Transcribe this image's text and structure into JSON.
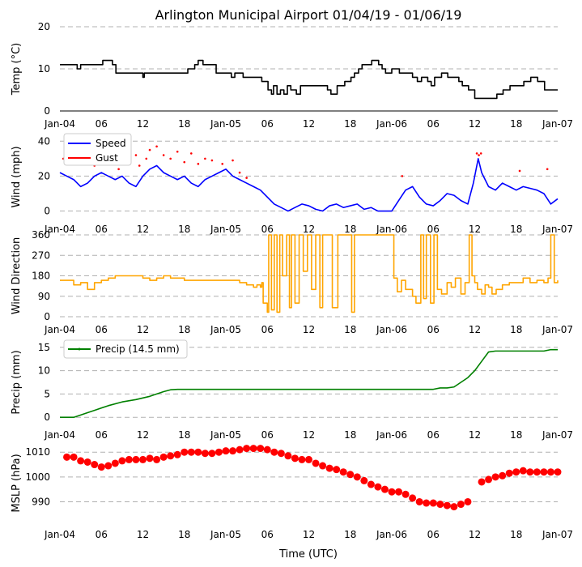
{
  "chart_data": {
    "title": "Arlington Municipal Airport 01/04/19 - 01/06/19",
    "xlabel": "Time (UTC)",
    "x_unit": "hours since Jan-04 00:00 UTC",
    "xlim": [
      0,
      72
    ],
    "x_ticks": [
      {
        "x": 0,
        "label": "Jan-04"
      },
      {
        "x": 6,
        "label": "06"
      },
      {
        "x": 12,
        "label": "12"
      },
      {
        "x": 18,
        "label": "18"
      },
      {
        "x": 24,
        "label": "Jan-05"
      },
      {
        "x": 30,
        "label": "06"
      },
      {
        "x": 36,
        "label": "12"
      },
      {
        "x": 42,
        "label": "18"
      },
      {
        "x": 48,
        "label": "Jan-06"
      },
      {
        "x": 54,
        "label": "06"
      },
      {
        "x": 60,
        "label": "12"
      },
      {
        "x": 66,
        "label": "18"
      },
      {
        "x": 72,
        "label": "Jan-07"
      }
    ],
    "panels": [
      {
        "name": "temp",
        "type": "line",
        "ylabel": "Temp ($^\\circ$C)",
        "ylabel_display": "Temp (°C)",
        "ylim": [
          0,
          20
        ],
        "yticks": [
          0,
          10,
          20
        ],
        "bottom_axis_line": true,
        "series": [
          {
            "name": "Temp",
            "color": "#000000",
            "step": true,
            "x": [
              0,
              2.5,
              3.0,
              5.2,
              6.2,
              7.6,
              8.1,
              12,
              12.2,
              14,
              16,
              18.5,
              19.5,
              20,
              20.7,
              22.6,
              24.8,
              25.3,
              26.5,
              29.2,
              30.1,
              30.6,
              30.9,
              31.4,
              31.9,
              32.4,
              32.9,
              33.4,
              34.2,
              34.8,
              38.7,
              39.2,
              39.7,
              40.1,
              41.2,
              42.1,
              42.6,
              43.2,
              43.7,
              44.2,
              45.1,
              46.1,
              46.6,
              47.1,
              48,
              48.6,
              49.1,
              51,
              51.7,
              52.3,
              53.2,
              53.7,
              54.2,
              55.2,
              56.1,
              57.2,
              57.7,
              58.2,
              59.1,
              60,
              61,
              62.5,
              63.2,
              64.1,
              65.1,
              66.1,
              67.1,
              68.1,
              69.1,
              70.1,
              72
            ],
            "values": [
              11,
              10,
              11,
              11,
              12,
              11,
              9,
              8,
              9,
              9,
              9,
              10,
              11,
              12,
              11,
              9,
              8,
              9,
              8,
              7,
              5,
              4,
              6,
              4,
              5,
              4,
              6,
              5,
              4,
              6,
              5,
              4,
              4,
              6,
              7,
              8,
              9,
              10,
              11,
              11,
              12,
              11,
              10,
              9,
              10,
              10,
              9,
              8,
              7,
              8,
              7,
              6,
              8,
              9,
              8,
              8,
              7,
              6,
              5,
              3,
              3,
              3,
              4,
              5,
              6,
              6,
              7,
              8,
              7,
              5,
              5
            ]
          }
        ]
      },
      {
        "name": "wind",
        "type": "line",
        "ylabel": "Wind (mph)",
        "ylim": [
          -3,
          42
        ],
        "yticks": [
          0,
          20,
          40
        ],
        "legend": "top-left",
        "series": [
          {
            "name": "Speed",
            "color": "#0000ff",
            "x": [
              0,
              1,
              2,
              3,
              4,
              5,
              6,
              7,
              8,
              9,
              10,
              11,
              12,
              13,
              14,
              15,
              16,
              17,
              18,
              19,
              20,
              21,
              22,
              23,
              24,
              25,
              26,
              27,
              28,
              29,
              30,
              31,
              32,
              33,
              34,
              35,
              36,
              37,
              38,
              39,
              40,
              41,
              42,
              43,
              44,
              45,
              46,
              47,
              48,
              49,
              50,
              51,
              52,
              53,
              54,
              55,
              56,
              57,
              58,
              59,
              59.8,
              60.5,
              61,
              62,
              63,
              64,
              65,
              66,
              67,
              68,
              69,
              70,
              71,
              72
            ],
            "values": [
              22,
              20,
              18,
              14,
              16,
              20,
              22,
              20,
              18,
              20,
              16,
              14,
              20,
              24,
              26,
              22,
              20,
              18,
              20,
              16,
              14,
              18,
              20,
              22,
              24,
              20,
              18,
              16,
              14,
              12,
              8,
              4,
              2,
              0,
              2,
              4,
              3,
              1,
              0,
              3,
              4,
              2,
              3,
              4,
              1,
              2,
              0,
              0,
              0,
              6,
              12,
              14,
              8,
              4,
              3,
              6,
              10,
              9,
              6,
              4,
              16,
              30,
              22,
              14,
              12,
              16,
              14,
              12,
              14,
              13,
              12,
              10,
              4,
              7
            ]
          },
          {
            "name": "Gust",
            "color": "#ff0000",
            "marker": "dots",
            "x": [
              0.5,
              3,
              5,
              8.5,
              9,
              11,
              11.5,
              12.5,
              13,
              14,
              15,
              16,
              17,
              18,
              19,
              20,
              21,
              22,
              23.5,
              25,
              26,
              27,
              49.5,
              60.3,
              60.6,
              60.9,
              66.5,
              70.5
            ],
            "values": [
              30,
              28,
              26,
              24,
              30,
              32,
              26,
              30,
              35,
              37,
              32,
              30,
              34,
              28,
              33,
              27,
              30,
              29,
              27,
              29,
              22,
              19,
              20,
              33,
              32,
              33,
              23,
              24
            ]
          }
        ]
      },
      {
        "name": "direction",
        "type": "line",
        "ylabel": "Wind Direction",
        "ylim": [
          0,
          360
        ],
        "yticks": [
          0,
          90,
          180,
          270,
          360
        ],
        "series": [
          {
            "name": "Direction",
            "color": "#ffa500",
            "step": true,
            "x": [
              0,
              2,
              3,
              4,
              5,
              6,
              7,
              8,
              10,
              12,
              13,
              14,
              15,
              16,
              18,
              20,
              21,
              24,
              26,
              27,
              28,
              28.5,
              29,
              29.2,
              29.4,
              30,
              30.2,
              30.6,
              31,
              31.4,
              31.8,
              32.2,
              32.8,
              33.2,
              33.5,
              34,
              34.6,
              35.2,
              35.8,
              36.4,
              37,
              37.6,
              38,
              38.4,
              38.8,
              39.4,
              40.2,
              41,
              41.6,
              42.2,
              42.6,
              43,
              46,
              48,
              48.3,
              48.8,
              49.4,
              50,
              51,
              51.5,
              52.2,
              52.6,
              53,
              53.6,
              54.1,
              54.6,
              55.2,
              56,
              56.6,
              57.2,
              58,
              58.6,
              59.2,
              59.6,
              60,
              60.4,
              61,
              61.5,
              62,
              62.5,
              63.1,
              64,
              65,
              66,
              67,
              68,
              69,
              70,
              70.6,
              71,
              71.5,
              72
            ],
            "values": [
              160,
              140,
              150,
              120,
              150,
              160,
              170,
              180,
              180,
              170,
              160,
              170,
              180,
              170,
              160,
              160,
              160,
              160,
              150,
              140,
              130,
              140,
              130,
              150,
              60,
              20,
              360,
              30,
              360,
              20,
              360,
              180,
              360,
              40,
              360,
              60,
              360,
              200,
              360,
              120,
              360,
              40,
              360,
              360,
              360,
              40,
              360,
              360,
              360,
              20,
              360,
              360,
              360,
              360,
              170,
              110,
              160,
              120,
              90,
              60,
              360,
              80,
              360,
              60,
              360,
              120,
              100,
              150,
              130,
              170,
              100,
              150,
              360,
              180,
              150,
              120,
              100,
              140,
              130,
              100,
              120,
              140,
              150,
              150,
              170,
              150,
              160,
              150,
              170,
              360,
              150,
              160
            ]
          }
        ]
      },
      {
        "name": "precip",
        "type": "line",
        "ylabel": "Precip (mm)",
        "ylim": [
          -1,
          16
        ],
        "yticks": [
          0,
          5,
          10,
          15
        ],
        "legend": "top-left",
        "series": [
          {
            "name": "Precip (14.5 mm)",
            "color": "#008000",
            "x": [
              0,
              2,
              3,
              5,
              7,
              9,
              11,
              13,
              14,
              15,
              16,
              17,
              18,
              21,
              24,
              30,
              36,
              42,
              48,
              54,
              55,
              56,
              57,
              58,
              59,
              60,
              61,
              62,
              63,
              64,
              66,
              68,
              70,
              71,
              72
            ],
            "values": [
              0,
              0,
              0.5,
              1.5,
              2.5,
              3.3,
              3.8,
              4.5,
              5.0,
              5.5,
              5.9,
              6.0,
              6.0,
              6.0,
              6.0,
              6.0,
              6.0,
              6.0,
              6.0,
              6.0,
              6.3,
              6.3,
              6.5,
              7.5,
              8.5,
              10,
              12,
              14,
              14.2,
              14.2,
              14.2,
              14.2,
              14.2,
              14.5,
              14.5
            ]
          }
        ]
      },
      {
        "name": "mslp",
        "type": "scatter",
        "ylabel": "MSLP (hPa)",
        "ylim": [
          982,
          1013
        ],
        "yticks": [
          990,
          1000,
          1010
        ],
        "series": [
          {
            "name": "MSLP",
            "color": "#ff0000",
            "marker": "circle",
            "x": [
              1,
              2,
              3,
              4,
              5,
              6,
              7,
              8,
              9,
              10,
              11,
              12,
              13,
              14,
              15,
              16,
              17,
              18,
              19,
              20,
              21,
              22,
              23,
              24,
              25,
              26,
              27,
              28,
              29,
              30,
              31,
              32,
              33,
              34,
              35,
              36,
              37,
              38,
              39,
              40,
              41,
              42,
              43,
              44,
              45,
              46,
              47,
              48,
              49,
              50,
              51,
              52,
              53,
              54,
              55,
              56,
              57,
              58,
              59,
              60,
              61,
              62,
              63,
              64,
              65,
              66,
              67,
              68,
              69,
              70,
              71,
              72
            ],
            "values": [
              1008,
              1008,
              1006.5,
              1006,
              1005,
              1004,
              1004.5,
              1005.5,
              1006.5,
              1007,
              1007,
              1007,
              1007.5,
              1007,
              1008,
              1008.5,
              1009,
              1010,
              1010,
              1010,
              1009.5,
              1009.5,
              1010,
              1010.5,
              1010.5,
              1011,
              1011.5,
              1011.5,
              1011.5,
              1011,
              1010,
              1009.5,
              1008.5,
              1007.5,
              1007,
              1007,
              1005.5,
              1004.5,
              1003.5,
              1003,
              1002,
              1001,
              1000,
              998.5,
              997,
              996,
              995,
              994,
              994,
              993,
              991.5,
              990,
              989.5,
              989.5,
              989,
              988.5,
              988,
              989,
              990,
              null,
              998,
              999,
              1000,
              1000.5,
              1001.5,
              1002,
              1002.5,
              1002,
              1002,
              1002,
              1002,
              1002
            ]
          }
        ]
      }
    ]
  }
}
